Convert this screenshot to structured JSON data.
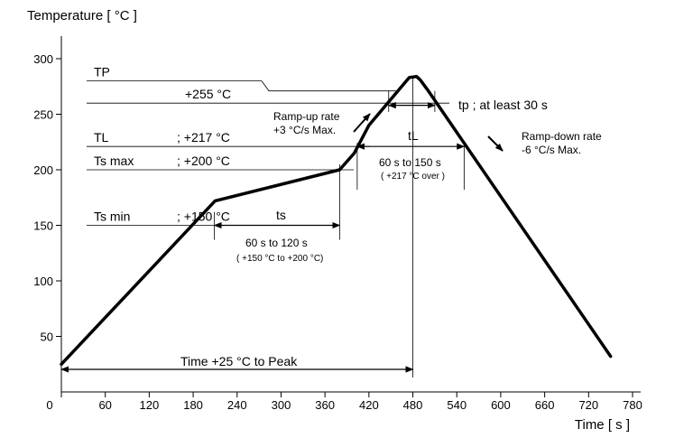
{
  "chart_data": {
    "type": "line",
    "title": "",
    "ylabel": "Temperature [ °C ]",
    "xlabel": "Time [ s ]",
    "xlim": [
      0,
      780
    ],
    "ylim": [
      0,
      310
    ],
    "grid": false,
    "x_ticks": [
      0,
      60,
      120,
      180,
      240,
      300,
      360,
      420,
      480,
      540,
      600,
      660,
      720,
      780
    ],
    "y_ticks": [
      50,
      100,
      150,
      200,
      250,
      300
    ],
    "series": [
      {
        "x": [
          0,
          210,
          380,
          400,
          420,
          475,
          485,
          490,
          500,
          750
        ],
        "y": [
          25,
          172,
          200,
          215,
          240,
          283,
          284,
          281,
          272,
          32
        ]
      }
    ],
    "levels": [
      {
        "label": "TP",
        "value": "",
        "y": 280
      },
      {
        "label": "",
        "value": "+255 °C",
        "y": 260
      },
      {
        "label": "TL",
        "value": "; +217 °C",
        "y": 221
      },
      {
        "label": "Ts max",
        "value": "; +200 °C",
        "y": 200
      },
      {
        "label": "Ts min",
        "value": "; +150 °C",
        "y": 150
      }
    ],
    "annotations": {
      "ramp_up": [
        "Ramp-up rate",
        "+3 °C/s Max."
      ],
      "ramp_down": [
        "Ramp-down rate",
        "-6 °C/s Max."
      ],
      "tp": "tp ; at least 30 s",
      "tl": "tL",
      "tl_range": "60 s  to  150 s",
      "tl_note": "( +217 °C  over )",
      "ts": "ts",
      "ts_range": "60 s  to  120 s",
      "ts_note": "( +150 °C to +200 °C)",
      "peak": "Time +25 °C to Peak"
    }
  }
}
